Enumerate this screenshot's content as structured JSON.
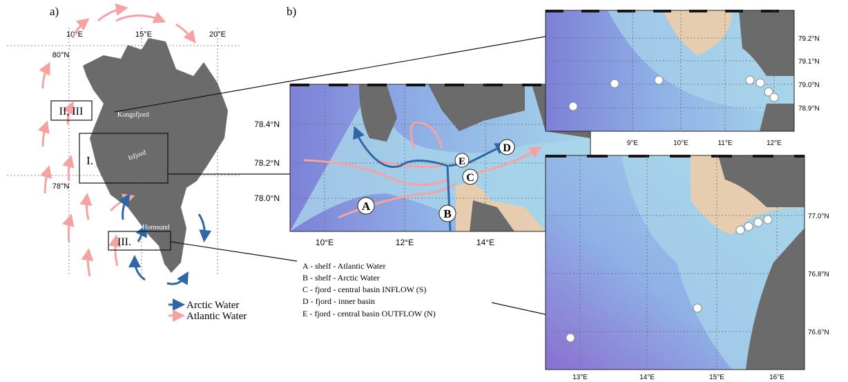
{
  "panel_a": {
    "label": "a)",
    "lon_labels": [
      "10°E",
      "15°E",
      "20°E"
    ],
    "lat_labels": [
      "80°N",
      "78°N"
    ],
    "boxes": [
      "II, III",
      "I.",
      "III."
    ],
    "places": [
      "Kongsfjord",
      "Isfjord",
      "Hornsund"
    ],
    "legend": [
      "Arctic Water",
      "Atlantic Water"
    ]
  },
  "panel_b": {
    "label": "b)",
    "lat_labels": [
      "78.4°N",
      "78.2°N",
      "78.0°N"
    ],
    "lon_labels": [
      "10°E",
      "12°E",
      "14°E"
    ],
    "markers": [
      "A",
      "B",
      "C",
      "D",
      "E"
    ],
    "key": [
      "A - shelf - Atlantic Water",
      "B - shelf - Arctic Water",
      "C - fjord - central basin INFLOW (S)",
      "D - fjord - inner basin",
      "E - fjord - central basin OUTFLOW (N)"
    ]
  },
  "inset_kongsfjord": {
    "lat_labels": [
      "79.2°N",
      "79.1°N",
      "79.0°N",
      "78.9°N"
    ],
    "lon_labels": [
      "9°E",
      "10°E",
      "11°E",
      "12°E"
    ]
  },
  "inset_hornsund": {
    "lat_labels": [
      "77.0°N",
      "76.8°N",
      "76.6°N"
    ],
    "lon_labels": [
      "13°E",
      "14°E",
      "15°E",
      "16°E"
    ]
  }
}
